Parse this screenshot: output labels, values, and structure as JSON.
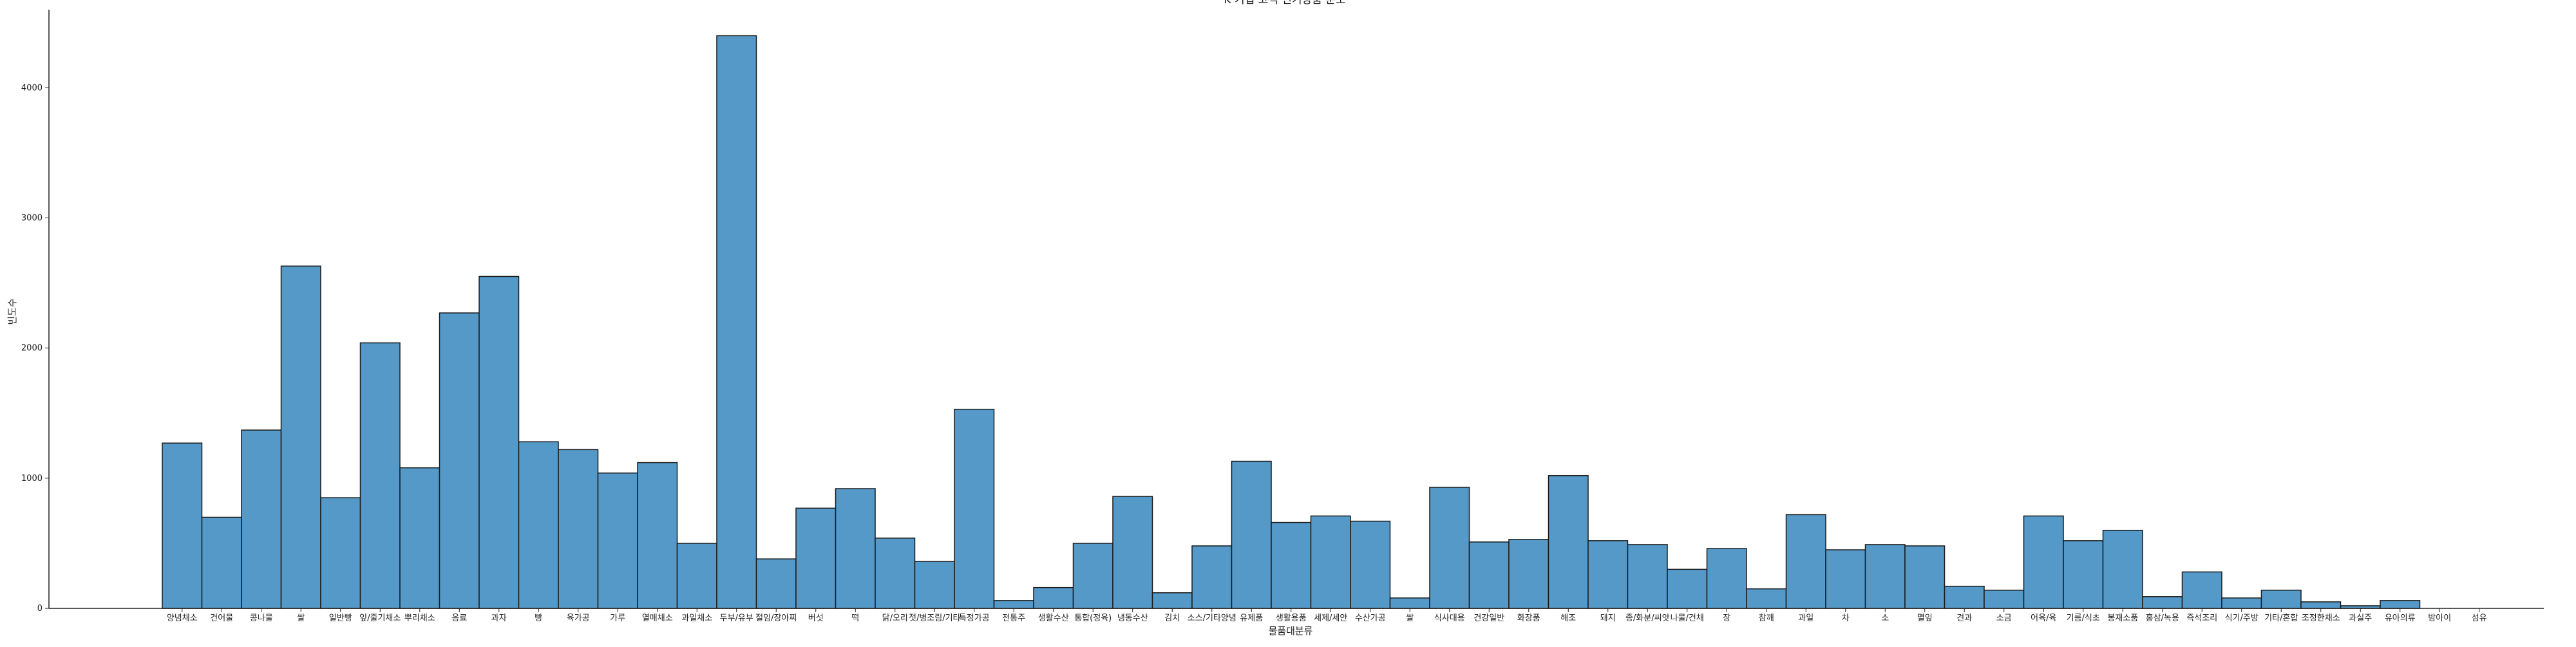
{
  "chart_data": {
    "type": "bar",
    "title": "K 기업 고객 인기상품 분포",
    "xlabel": "물품대분류",
    "ylabel": "빈도수",
    "ylim": [
      0,
      4600
    ],
    "yticks": [
      0,
      1000,
      2000,
      3000,
      4000
    ],
    "grid": false,
    "legend": "none",
    "bar_color": "#5599c8",
    "edge_color": "#1a1a1a",
    "categories": [
      "양념채소",
      "건어물",
      "콩나물",
      "쌀",
      "일반빵",
      "잎/줄기채소",
      "뿌리채소",
      "음료",
      "과자",
      "빵",
      "육가공",
      "가루",
      "열매채소",
      "과일채소",
      "두부/유부",
      "절임/장아찌",
      "버섯",
      "떡",
      "닭/오리",
      "젓/병조림/기타",
      "특정가공",
      "전통주",
      "생활수산",
      "통합(정육)",
      "냉동수산",
      "김치",
      "소스/기타양념",
      "유제품",
      "생활용품",
      "세제/세안",
      "수산가공",
      "쌀",
      "식사대용",
      "건강일반",
      "화장품",
      "해조",
      "돼지",
      "종/화분/씨앗",
      "나물/건채",
      "장",
      "참깨",
      "과일",
      "차",
      "소",
      "멸잎",
      "견과",
      "소금",
      "어육/육",
      "기름/식초",
      "봉재소품",
      "홍삼/녹용",
      "즉석조리",
      "식기/주방",
      "기타/혼합",
      "조정한채소",
      "과실주",
      "유아의류",
      "밤아이",
      "섬유"
    ],
    "values": [
      1270,
      700,
      1370,
      2630,
      850,
      2040,
      1080,
      2270,
      2550,
      1280,
      1220,
      1040,
      1120,
      500,
      4400,
      380,
      770,
      920,
      540,
      360,
      1530,
      60,
      160,
      500,
      860,
      120,
      480,
      1130,
      660,
      710,
      670,
      80,
      930,
      510,
      530,
      1020,
      520,
      490,
      300,
      460,
      150,
      720,
      450,
      490,
      480,
      170,
      140,
      710,
      520,
      600,
      90,
      280,
      80,
      140,
      50,
      20,
      60,
      0,
      0
    ]
  }
}
